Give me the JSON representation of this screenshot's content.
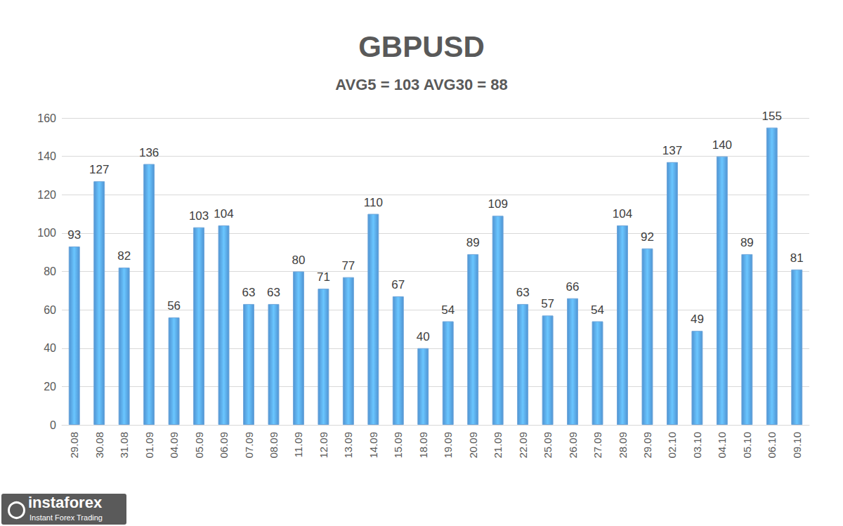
{
  "chart_data": {
    "type": "bar",
    "title": "GBPUSD",
    "subtitle": "AVG5 = 103 AVG30 = 88",
    "categories": [
      "29.08",
      "30.08",
      "31.08",
      "01.09",
      "04.09",
      "05.09",
      "06.09",
      "07.09",
      "08.09",
      "11.09",
      "12.09",
      "13.09",
      "14.09",
      "15.09",
      "18.09",
      "19.09",
      "20.09",
      "21.09",
      "22.09",
      "25.09",
      "26.09",
      "27.09",
      "28.09",
      "29.09",
      "02.10",
      "03.10",
      "04.10",
      "05.10",
      "06.10",
      "09.10"
    ],
    "values": [
      93,
      127,
      82,
      136,
      56,
      103,
      104,
      63,
      63,
      80,
      71,
      77,
      110,
      67,
      40,
      54,
      89,
      109,
      63,
      57,
      66,
      54,
      104,
      92,
      137,
      49,
      140,
      89,
      155,
      81
    ],
    "color": "#4f93d2",
    "ylim": [
      0,
      160
    ],
    "yticks": [
      0,
      20,
      40,
      60,
      80,
      100,
      120,
      140,
      160
    ],
    "grid": true,
    "data_labels": true,
    "annotations": [
      "instaforex",
      "Instant Forex Trading"
    ]
  }
}
